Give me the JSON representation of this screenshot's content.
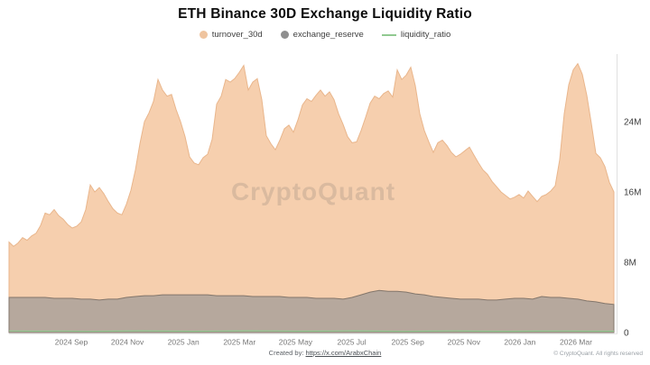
{
  "title": "ETH Binance 30D Exchange Liquidity Ratio",
  "legend": [
    {
      "label": "turnover_30d",
      "color": "#efc49f",
      "marker": "circle"
    },
    {
      "label": "exchange_reserve",
      "color": "#8f8f8f",
      "marker": "circle"
    },
    {
      "label": "liquidity_ratio",
      "color": "#90c990",
      "marker": "line"
    }
  ],
  "watermark": "CryptoQuant",
  "footer": {
    "created_by_prefix": "Created by:",
    "created_by_link": "https://x.com/ArabxChain",
    "copyright": "© CryptoQuant. All rights reserved"
  },
  "chart_data": {
    "type": "area",
    "title": "ETH Binance 30D Exchange Liquidity Ratio",
    "grid": false,
    "legend_position": "top",
    "x_axis": {
      "tick_labels": [
        "2024 Sep",
        "2024 Nov",
        "2025 Jan",
        "2025 Mar",
        "2025 May",
        "2025 Jul",
        "2025 Sep",
        "2025 Nov",
        "2026 Jan",
        "2026 Mar"
      ]
    },
    "y_axis": {
      "side": "right",
      "unit": "M",
      "ylim": [
        0,
        32
      ],
      "ticks": [
        {
          "label": "0",
          "value": 0
        },
        {
          "label": "8M",
          "value": 8
        },
        {
          "label": "16M",
          "value": 16
        },
        {
          "label": "24M",
          "value": 24
        }
      ]
    },
    "series": [
      {
        "name": "turnover_30d",
        "type": "area",
        "color": "#f6cfae",
        "stroke": "#e9b68c",
        "unit": "M",
        "values": [
          10.3,
          9.8,
          10.2,
          10.8,
          10.5,
          11.0,
          11.3,
          12.2,
          13.6,
          13.4,
          14.0,
          13.3,
          12.9,
          12.3,
          11.9,
          12.1,
          12.6,
          14.0,
          16.8,
          16.0,
          16.5,
          15.8,
          14.9,
          14.1,
          13.6,
          13.4,
          14.6,
          16.2,
          18.5,
          21.5,
          24.0,
          25.0,
          26.3,
          28.8,
          27.6,
          26.9,
          27.1,
          25.4,
          24.0,
          22.3,
          20.0,
          19.3,
          19.1,
          19.9,
          20.3,
          22.0,
          26.0,
          26.9,
          28.8,
          28.5,
          28.9,
          29.6,
          30.4,
          27.6,
          28.5,
          28.9,
          26.5,
          22.4,
          21.5,
          20.8,
          21.9,
          23.2,
          23.6,
          22.8,
          24.2,
          25.9,
          26.6,
          26.3,
          27.0,
          27.6,
          26.9,
          27.4,
          26.5,
          24.9,
          23.7,
          22.3,
          21.6,
          21.7,
          23.0,
          24.5,
          26.1,
          26.9,
          26.6,
          27.2,
          27.5,
          26.8,
          29.9,
          28.8,
          29.3,
          30.2,
          28.1,
          24.9,
          23.0,
          21.7,
          20.5,
          21.6,
          21.9,
          21.3,
          20.5,
          20.0,
          20.3,
          20.7,
          21.1,
          20.2,
          19.3,
          18.5,
          18.0,
          17.2,
          16.6,
          16.0,
          15.6,
          15.2,
          15.4,
          15.7,
          15.3,
          16.1,
          15.5,
          14.9,
          15.5,
          15.7,
          16.1,
          16.7,
          19.7,
          24.9,
          28.2,
          29.9,
          30.6,
          29.4,
          27.0,
          23.8,
          20.4,
          19.9,
          18.9,
          17.1,
          16.0
        ]
      },
      {
        "name": "exchange_reserve",
        "type": "area",
        "color": "#b6a89d",
        "stroke": "#83766b",
        "unit": "M",
        "values": [
          4.0,
          4.0,
          4.0,
          4.0,
          4.0,
          3.9,
          3.9,
          3.9,
          3.8,
          3.8,
          3.7,
          3.8,
          3.8,
          4.0,
          4.1,
          4.2,
          4.2,
          4.3,
          4.3,
          4.3,
          4.3,
          4.3,
          4.3,
          4.2,
          4.2,
          4.2,
          4.2,
          4.1,
          4.1,
          4.1,
          4.1,
          4.0,
          4.0,
          4.0,
          3.9,
          3.9,
          3.9,
          3.8,
          4.0,
          4.3,
          4.6,
          4.8,
          4.7,
          4.7,
          4.6,
          4.4,
          4.3,
          4.1,
          4.0,
          3.9,
          3.8,
          3.8,
          3.8,
          3.7,
          3.7,
          3.8,
          3.9,
          3.9,
          3.8,
          4.1,
          4.0,
          4.0,
          3.9,
          3.8,
          3.6,
          3.5,
          3.3,
          3.2
        ]
      },
      {
        "name": "liquidity_ratio",
        "type": "line",
        "color": "#90c990",
        "values": [
          0.18,
          0.15,
          0.17,
          0.13,
          0.16,
          0.19,
          0.16,
          0.14,
          0.17,
          0.2,
          0.18,
          0.15,
          0.16,
          0.19,
          0.16,
          0.13,
          0.16,
          0.18,
          0.15,
          0.14,
          0.16,
          0.17,
          0.15,
          0.15
        ]
      }
    ]
  }
}
